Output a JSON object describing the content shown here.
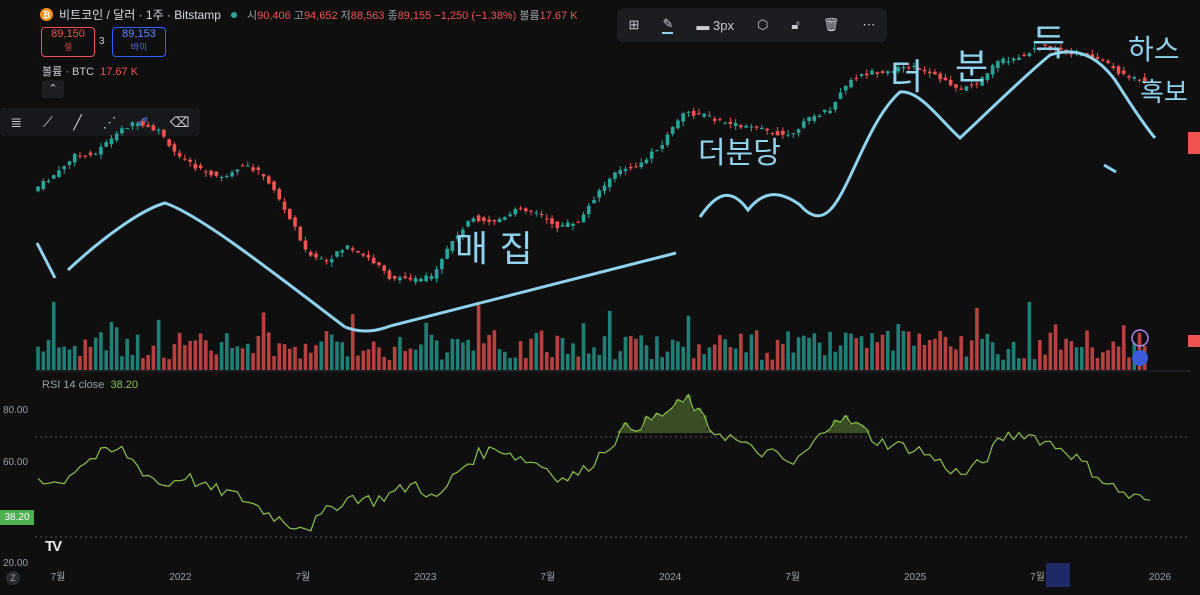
{
  "header": {
    "symbol": "비트코인 / 달러 · 1주 · Bitstamp",
    "open_label": "시",
    "open": "90,406",
    "high_label": "고",
    "high": "94,652",
    "low_label": "저",
    "low": "88,563",
    "close_label": "종",
    "close": "89,155",
    "change": "−1,250 (−1.38%)",
    "vol_label": "볼륨",
    "vol": "17.67 K"
  },
  "trade": {
    "sell_price": "89,150",
    "sell_label": "셀",
    "spread": "3",
    "buy_price": "89,153",
    "buy_label": "바이"
  },
  "volume_legend": {
    "label": "볼륨 · BTC",
    "value": "17.67 K"
  },
  "collapse_icon": "chevron-up-icon",
  "toolbar": {
    "width_label": "3px"
  },
  "annotations": {
    "a1": "매 집",
    "a2": "더분당",
    "a3": "더",
    "a4": "분",
    "a5": "득",
    "a6": "하스",
    "a7": "혹보"
  },
  "rsi": {
    "label": "RSI 14 close",
    "value": "38.20",
    "ticks": [
      "80.00",
      "60.00",
      "20.00"
    ]
  },
  "colors": {
    "up": "#26a69a",
    "down": "#ef5350",
    "rsi": "#8bc34a",
    "annotation": "#8fd3ef"
  },
  "chart_data": [
    {
      "type": "candlestick",
      "title": "비트코인 / 달러 · 1주 · Bitstamp",
      "x_ticks": [
        "7월",
        "2022",
        "7월",
        "2023",
        "7월",
        "2024",
        "7월",
        "2025",
        "7월",
        "2026"
      ],
      "series": [
        {
          "name": "price_close_approx",
          "values": [
            35000,
            40000,
            47000,
            48000,
            57000,
            63000,
            58000,
            46000,
            42000,
            39000,
            44000,
            40000,
            30000,
            21000,
            19500,
            22000,
            20000,
            17000,
            16500,
            17000,
            23000,
            28000,
            27000,
            30000,
            29000,
            26000,
            27000,
            35000,
            42000,
            44000,
            52000,
            68000,
            66000,
            62000,
            60000,
            58000,
            56000,
            64000,
            70000,
            90000,
            95000,
            97000,
            100000,
            94000,
            82000,
            86000,
            104000,
            108000,
            118000,
            115000,
            110000,
            105000,
            92000,
            89155
          ]
        }
      ],
      "volume": {
        "name": "볼륨",
        "last": "17.67 K"
      }
    },
    {
      "type": "line",
      "series": [
        {
          "name": "RSI 14 close",
          "values": [
            49,
            46,
            55,
            60,
            62,
            52,
            45,
            50,
            44,
            42,
            38,
            32,
            27,
            26,
            35,
            40,
            38,
            42,
            46,
            38,
            52,
            60,
            63,
            58,
            55,
            48,
            52,
            62,
            72,
            75,
            80,
            86,
            72,
            68,
            62,
            60,
            55,
            65,
            78,
            74,
            66,
            64,
            62,
            56,
            50,
            56,
            68,
            70,
            66,
            62,
            54,
            46,
            40,
            38.2
          ]
        }
      ],
      "ylim": [
        10,
        95
      ],
      "ticks": [
        80,
        60,
        20
      ],
      "last": 38.2
    }
  ]
}
